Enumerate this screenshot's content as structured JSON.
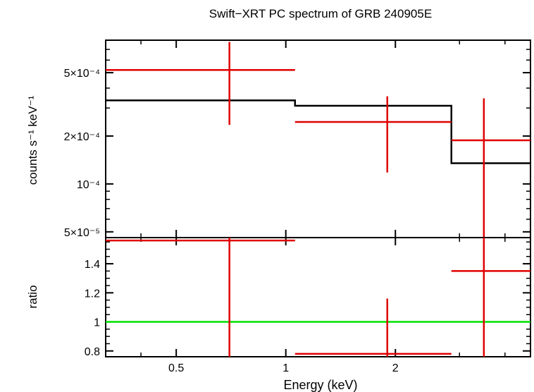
{
  "chart_data": {
    "type": "scatter",
    "title": "Swift−XRT PC spectrum of GRB 240905E",
    "xlabel": "Energy (keV)",
    "x_scale": "log",
    "x_range": [
      0.32,
      4.7
    ],
    "x_ticks": [
      {
        "value": 0.5,
        "label": "0.5"
      },
      {
        "value": 1,
        "label": "1"
      },
      {
        "value": 2,
        "label": "2"
      }
    ],
    "panels": [
      {
        "name": "spectrum",
        "ylabel": "counts s⁻¹ keV⁻¹",
        "y_scale": "log",
        "y_range": [
          4.6e-05,
          0.0008
        ],
        "y_ticks": [
          {
            "value": 0.0005,
            "label": "5×10⁻⁴"
          },
          {
            "value": 0.0002,
            "label": "2×10⁻⁴"
          },
          {
            "value": 0.0001,
            "label": "10⁻⁴"
          },
          {
            "value": 5e-05,
            "label": "5×10⁻⁵"
          }
        ],
        "data_points": [
          {
            "x": 0.7,
            "xlo": 0.32,
            "xhi": 1.06,
            "y": 0.00052,
            "ylo": 0.000235,
            "yhi": 0.00078
          },
          {
            "x": 1.9,
            "xlo": 1.06,
            "xhi": 2.85,
            "y": 0.000245,
            "ylo": 0.000118,
            "yhi": 0.000355
          },
          {
            "x": 3.5,
            "xlo": 2.85,
            "xhi": 4.7,
            "y": 0.000188,
            "ylo": 4.6e-05,
            "yhi": 0.000345
          }
        ],
        "model_steps": [
          {
            "xlo": 0.32,
            "xhi": 1.06,
            "y": 0.000335
          },
          {
            "xlo": 1.06,
            "xhi": 2.85,
            "y": 0.00031
          },
          {
            "xlo": 2.85,
            "xhi": 4.7,
            "y": 0.000135
          }
        ]
      },
      {
        "name": "ratio",
        "ylabel": "ratio",
        "y_scale": "linear",
        "y_range": [
          0.76,
          1.58
        ],
        "y_ticks": [
          {
            "value": 0.8,
            "label": "0.8"
          },
          {
            "value": 1,
            "label": "1"
          },
          {
            "value": 1.2,
            "label": "1.2"
          },
          {
            "value": 1.4,
            "label": "1.4"
          }
        ],
        "reference_line": 1,
        "data_points": [
          {
            "x": 0.7,
            "xlo": 0.32,
            "xhi": 1.06,
            "y": 1.56,
            "ylo": 0.76,
            "yhi": 1.58
          },
          {
            "x": 1.9,
            "xlo": 1.06,
            "xhi": 2.85,
            "y": 0.78,
            "ylo": 0.76,
            "yhi": 1.16
          },
          {
            "x": 3.5,
            "xlo": 2.85,
            "xhi": 4.7,
            "y": 1.35,
            "ylo": 0.76,
            "yhi": 1.58
          }
        ]
      }
    ],
    "colors": {
      "data": "#e00000",
      "model": "#000000",
      "reference": "#00e000",
      "axes": "#000000"
    },
    "grid": false,
    "legend": "none"
  }
}
